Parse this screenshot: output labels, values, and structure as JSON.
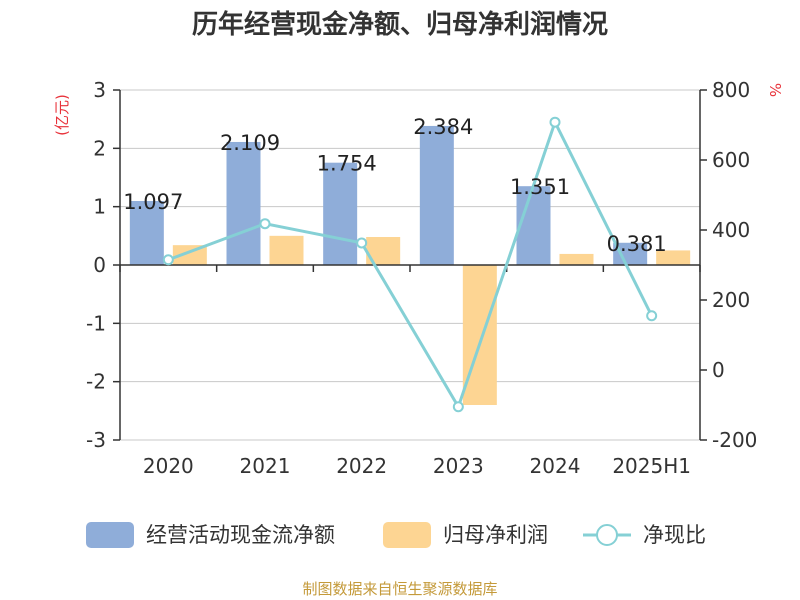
{
  "title": "历年经营现金净额、归母净利润情况",
  "source": "制图数据来自恒生聚源数据库",
  "colors": {
    "cash_flow": "#8fadd9",
    "net_profit": "#fdd593",
    "ratio": "#85d0d5",
    "axis": "#333333",
    "grid": "#c8c8c8",
    "unit": "#e8323a",
    "source": "#c49a3a"
  },
  "chart_data": {
    "type": "bar",
    "title": "历年经营现金净额、归母净利润情况",
    "categories": [
      "2020",
      "2021",
      "2022",
      "2023",
      "2024",
      "2025H1"
    ],
    "y_left": {
      "unit": "(亿元)",
      "range": [
        -3,
        3
      ],
      "ticks": [
        "3",
        "2",
        "1",
        "0",
        "-1",
        "-2",
        "-3"
      ]
    },
    "y_right": {
      "unit": "%",
      "range": [
        -200,
        800
      ],
      "ticks": [
        "800",
        "600",
        "400",
        "200",
        "0",
        "-200"
      ]
    },
    "series": [
      {
        "name": "经营活动现金流净额",
        "type": "bar",
        "axis": "left",
        "values": [
          1.097,
          2.109,
          1.754,
          2.384,
          1.351,
          0.381
        ],
        "labels": [
          "1.097",
          "2.109",
          "1.754",
          "2.384",
          "1.351",
          "0.381"
        ]
      },
      {
        "name": "归母净利润",
        "type": "bar",
        "axis": "left",
        "values": [
          0.34,
          0.5,
          0.48,
          -2.4,
          0.19,
          0.25
        ]
      },
      {
        "name": "净现比",
        "type": "line",
        "axis": "right",
        "values": [
          315,
          418,
          363,
          -105,
          708,
          155
        ]
      }
    ],
    "grid": true,
    "legend": "bottom"
  }
}
